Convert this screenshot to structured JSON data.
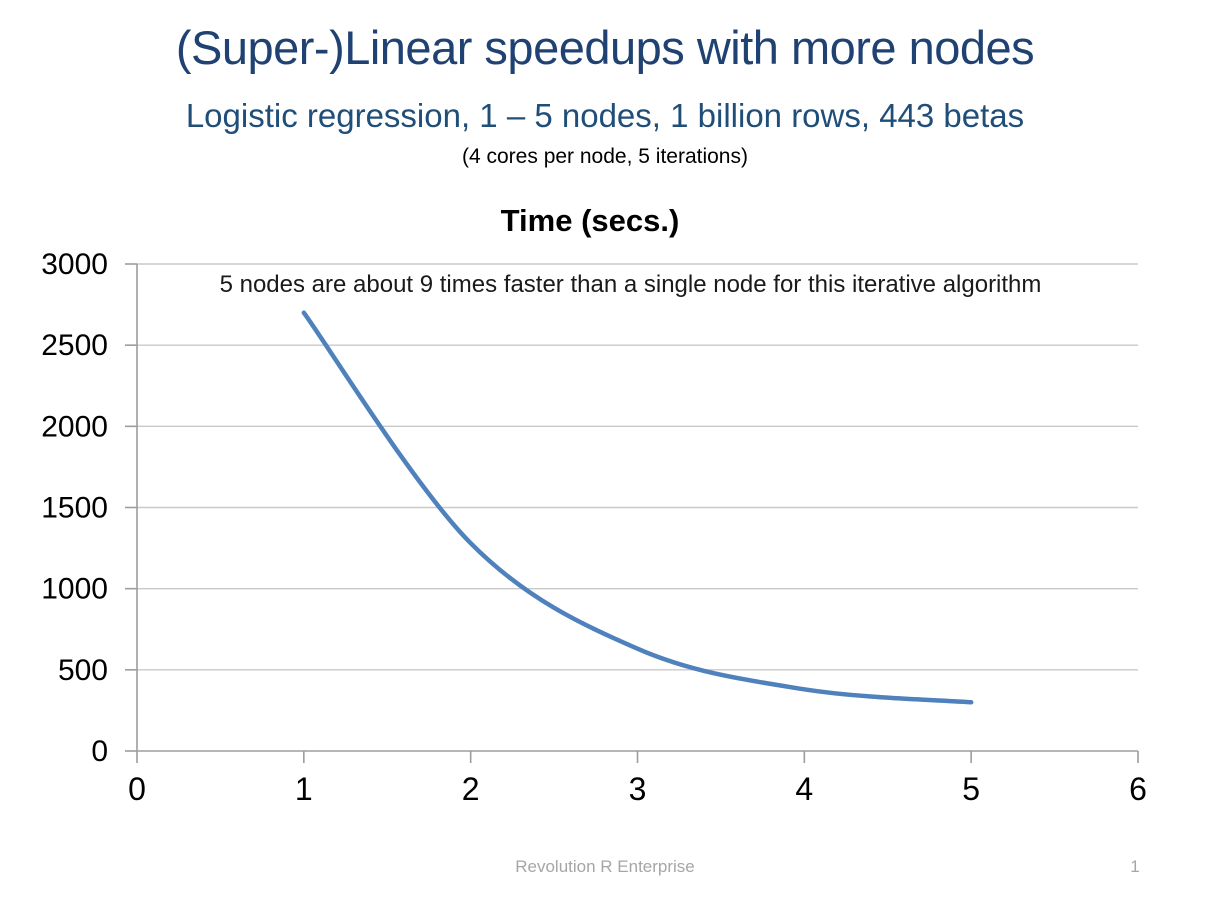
{
  "slide": {
    "title": "(Super-)Linear speedups with more nodes",
    "subtitle": "Logistic regression, 1 – 5 nodes, 1 billion rows, 443 betas",
    "footnote": "(4 cores per node, 5 iterations)",
    "footer": "Revolution R Enterprise",
    "page_number": "1"
  },
  "colors": {
    "title": "#1f4273",
    "subtitle": "#1f4e79",
    "annotation": "#1a1a1a",
    "line": "#4f81bd",
    "gridline": "#c9c9c9",
    "axis": "#9d9d9d",
    "tick_label": "#000000",
    "footer": "#a6a6a6"
  },
  "chart_data": {
    "type": "line",
    "title": "Time (secs.)",
    "annotation": "5 nodes are about 9 times faster than a single node for this iterative algorithm",
    "series": [
      {
        "name": "Time (secs.)",
        "x": [
          1,
          2,
          3,
          4,
          5
        ],
        "y": [
          2700,
          1280,
          630,
          380,
          300
        ]
      }
    ],
    "xlabel": "",
    "ylabel": "",
    "xlim": [
      0,
      6
    ],
    "ylim": [
      0,
      3000
    ],
    "x_ticks": [
      0,
      1,
      2,
      3,
      4,
      5,
      6
    ],
    "y_ticks": [
      0,
      500,
      1000,
      1500,
      2000,
      2500,
      3000
    ],
    "grid": "horizontal",
    "legend": "none",
    "smooth": true
  }
}
